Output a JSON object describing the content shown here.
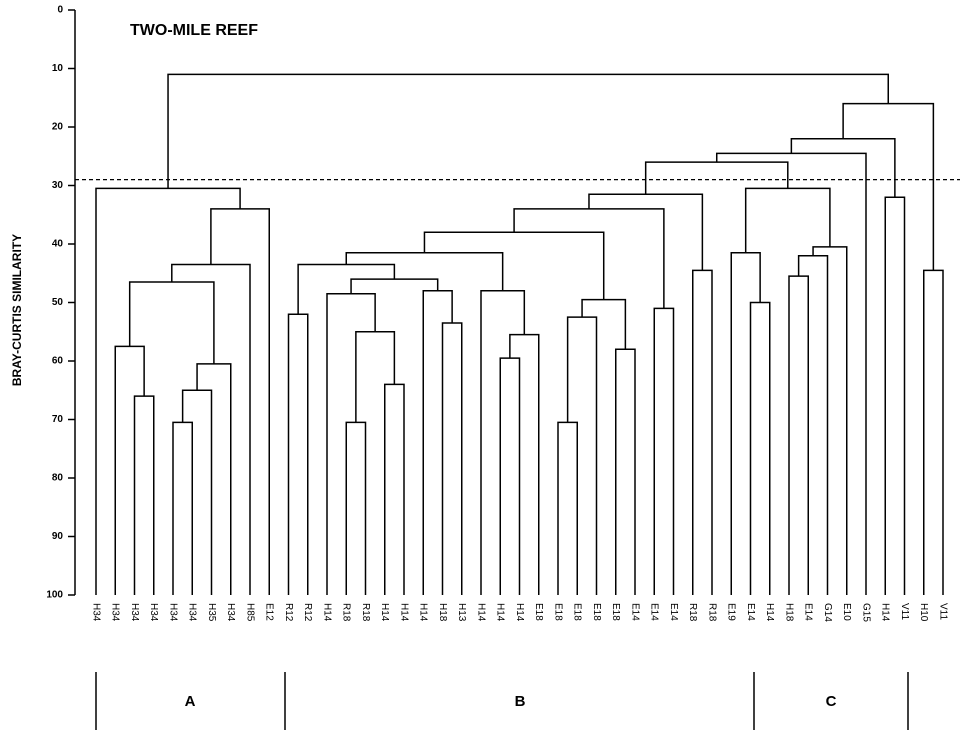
{
  "chart_data": {
    "type": "dendrogram",
    "title": "TWO-MILE REEF",
    "y_label": "BRAY-CURTIS SIMILARITY",
    "ylim": [
      0,
      100
    ],
    "yticks": [
      0,
      10,
      20,
      30,
      40,
      50,
      60,
      70,
      80,
      90,
      100
    ],
    "cutoff": 29,
    "groups": [
      "A",
      "B",
      "C"
    ],
    "tree": {
      "height": 11,
      "children": [
        {
          "height": 30.5,
          "children": [
            {
              "label": "H34"
            },
            {
              "height": 34,
              "children": [
                {
                  "height": 43.5,
                  "children": [
                    {
                      "height": 46.5,
                      "children": [
                        {
                          "height": 57.5,
                          "children": [
                            {
                              "label": "H34"
                            },
                            {
                              "height": 66,
                              "children": [
                                {
                                  "label": "H34"
                                },
                                {
                                  "label": "H34"
                                }
                              ]
                            }
                          ]
                        },
                        {
                          "height": 60.5,
                          "children": [
                            {
                              "height": 65,
                              "children": [
                                {
                                  "height": 70.5,
                                  "children": [
                                    {
                                      "label": "H34"
                                    },
                                    {
                                      "label": "H34"
                                    }
                                  ]
                                },
                                {
                                  "label": "H35"
                                }
                              ]
                            },
                            {
                              "label": "H34"
                            }
                          ]
                        }
                      ]
                    },
                    {
                      "label": "H85"
                    }
                  ]
                },
                {
                  "label": "E12"
                }
              ]
            }
          ]
        },
        {
          "height": 16,
          "children": [
            {
              "height": 22,
              "children": [
                {
                  "height": 24.5,
                  "children": [
                    {
                      "height": 26,
                      "children": [
                        {
                          "height": 31.5,
                          "children": [
                            {
                              "height": 34,
                              "children": [
                                {
                                  "height": 38,
                                  "children": [
                                    {
                                      "height": 41.5,
                                      "children": [
                                        {
                                          "height": 43.5,
                                          "children": [
                                            {
                                              "height": 52,
                                              "children": [
                                                {
                                                  "label": "R12"
                                                },
                                                {
                                                  "label": "R12"
                                                }
                                              ]
                                            },
                                            {
                                              "height": 46,
                                              "children": [
                                                {
                                                  "height": 48.5,
                                                  "children": [
                                                    {
                                                      "label": "H14"
                                                    },
                                                    {
                                                      "height": 55,
                                                      "children": [
                                                        {
                                                          "height": 70.5,
                                                          "children": [
                                                            {
                                                              "label": "R18"
                                                            },
                                                            {
                                                              "label": "R18"
                                                            }
                                                          ]
                                                        },
                                                        {
                                                          "height": 64,
                                                          "children": [
                                                            {
                                                              "label": "H14"
                                                            },
                                                            {
                                                              "label": "H14"
                                                            }
                                                          ]
                                                        }
                                                      ]
                                                    }
                                                  ]
                                                },
                                                {
                                                  "height": 48,
                                                  "children": [
                                                    {
                                                      "label": "H14"
                                                    },
                                                    {
                                                      "height": 53.5,
                                                      "children": [
                                                        {
                                                          "label": "H18"
                                                        },
                                                        {
                                                          "label": "H13"
                                                        }
                                                      ]
                                                    }
                                                  ]
                                                }
                                              ]
                                            }
                                          ]
                                        },
                                        {
                                          "height": 48,
                                          "children": [
                                            {
                                              "label": "H14"
                                            },
                                            {
                                              "height": 55.5,
                                              "children": [
                                                {
                                                  "height": 59.5,
                                                  "children": [
                                                    {
                                                      "label": "H14"
                                                    },
                                                    {
                                                      "label": "H14"
                                                    }
                                                  ]
                                                },
                                                {
                                                  "label": "E18"
                                                }
                                              ]
                                            }
                                          ]
                                        }
                                      ]
                                    },
                                    {
                                      "height": 49.5,
                                      "children": [
                                        {
                                          "height": 52.5,
                                          "children": [
                                            {
                                              "height": 70.5,
                                              "children": [
                                                {
                                                  "label": "E18"
                                                },
                                                {
                                                  "label": "E18"
                                                }
                                              ]
                                            },
                                            {
                                              "label": "E18"
                                            }
                                          ]
                                        },
                                        {
                                          "height": 58,
                                          "children": [
                                            {
                                              "label": "E18"
                                            },
                                            {
                                              "label": "E14"
                                            }
                                          ]
                                        }
                                      ]
                                    }
                                  ]
                                },
                                {
                                  "height": 51,
                                  "children": [
                                    {
                                      "label": "E14"
                                    },
                                    {
                                      "label": "E14"
                                    }
                                  ]
                                }
                              ]
                            },
                            {
                              "height": 44.5,
                              "children": [
                                {
                                  "label": "R18"
                                },
                                {
                                  "label": "R18"
                                }
                              ]
                            }
                          ]
                        },
                        {
                          "height": 30.5,
                          "children": [
                            {
                              "height": 41.5,
                              "children": [
                                {
                                  "label": "E19"
                                },
                                {
                                  "height": 50,
                                  "children": [
                                    {
                                      "label": "E14"
                                    },
                                    {
                                      "label": "H14"
                                    }
                                  ]
                                }
                              ]
                            },
                            {
                              "height": 40.5,
                              "children": [
                                {
                                  "height": 42,
                                  "children": [
                                    {
                                      "height": 45.5,
                                      "children": [
                                        {
                                          "label": "H18"
                                        },
                                        {
                                          "label": "E14"
                                        }
                                      ]
                                    },
                                    {
                                      "label": "G14"
                                    }
                                  ]
                                },
                                {
                                  "label": "E10"
                                }
                              ]
                            }
                          ]
                        }
                      ]
                    },
                    {
                      "label": "G15"
                    }
                  ]
                },
                {
                  "height": 32,
                  "children": [
                    {
                      "label": "H14"
                    },
                    {
                      "label": "V11"
                    }
                  ]
                }
              ]
            },
            {
              "height": 44.5,
              "children": [
                {
                  "label": "H10"
                },
                {
                  "label": "V11"
                }
              ]
            }
          ]
        }
      ]
    }
  }
}
